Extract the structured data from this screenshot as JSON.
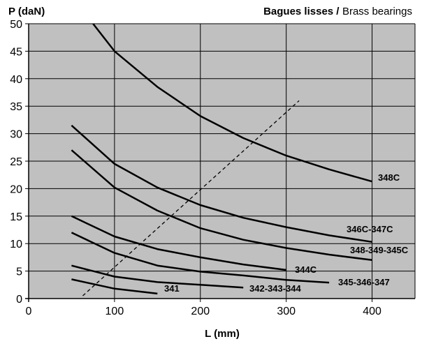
{
  "chart_data": {
    "type": "line",
    "title_bold": "Bagues lisses /",
    "title_normal": "Brass bearings",
    "xlabel": "L (mm)",
    "ylabel": "P (daN)",
    "xlim": [
      0,
      450
    ],
    "ylim": [
      0,
      50
    ],
    "xticks": [
      0,
      100,
      200,
      300,
      400
    ],
    "yticks": [
      0,
      5,
      10,
      15,
      20,
      25,
      30,
      35,
      40,
      45,
      50
    ],
    "grid": true,
    "plot_background": "#c0c0c0",
    "line_color": "#000000",
    "series": [
      {
        "name": "348C",
        "x": [
          75,
          100,
          150,
          200,
          250,
          300,
          350,
          400
        ],
        "y": [
          50,
          45,
          38.5,
          33.2,
          29.2,
          26,
          23.5,
          21.3
        ]
      },
      {
        "name": "346C-347C",
        "x": [
          50,
          100,
          150,
          200,
          250,
          300,
          350,
          400
        ],
        "y": [
          31.5,
          24.5,
          20.2,
          17,
          14.7,
          13,
          11.5,
          10.3
        ]
      },
      {
        "name": "348-349-345C",
        "x": [
          50,
          100,
          150,
          200,
          250,
          300,
          350,
          400
        ],
        "y": [
          27,
          20.2,
          16,
          12.8,
          10.7,
          9.2,
          8,
          7
        ]
      },
      {
        "name": "344C",
        "x": [
          50,
          100,
          150,
          200,
          250,
          300
        ],
        "y": [
          15,
          11.3,
          9,
          7.5,
          6.2,
          5.2
        ]
      },
      {
        "name": "345-346-347",
        "x": [
          50,
          100,
          150,
          200,
          250,
          300,
          350
        ],
        "y": [
          12,
          8.3,
          6,
          4.9,
          4.2,
          3.4,
          2.9
        ]
      },
      {
        "name": "342-343-344",
        "x": [
          50,
          100,
          150,
          200,
          250
        ],
        "y": [
          6,
          4,
          3,
          2.5,
          2
        ]
      },
      {
        "name": "341",
        "x": [
          50,
          100,
          150
        ],
        "y": [
          3.5,
          1.8,
          0.9
        ]
      }
    ],
    "limit_line": {
      "x": [
        63,
        315
      ],
      "y": [
        0.5,
        36
      ]
    }
  }
}
